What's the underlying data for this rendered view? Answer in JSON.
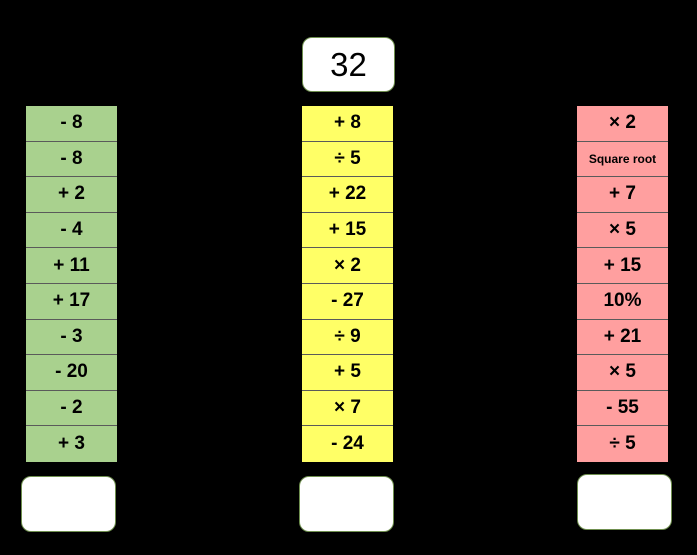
{
  "start_number": "32",
  "columns": [
    {
      "color": "#a9d18e",
      "operations": [
        "- 8",
        "- 8",
        "+ 2",
        "- 4",
        "+ 11",
        "+ 17",
        "- 3",
        "- 20",
        "- 2",
        "+ 3"
      ],
      "answer": ""
    },
    {
      "color": "#ffff66",
      "operations": [
        "+ 8",
        "÷ 5",
        "+ 22",
        "+ 15",
        "× 2",
        "- 27",
        "÷ 9",
        "+ 5",
        "× 7",
        "- 24"
      ],
      "answer": ""
    },
    {
      "color": "#ff9f9f",
      "operations": [
        "× 2",
        "Square root",
        "+ 7",
        "× 5",
        "+ 15",
        "10%",
        "+ 21",
        "× 5",
        "- 55",
        "÷ 5"
      ],
      "answer": ""
    }
  ]
}
